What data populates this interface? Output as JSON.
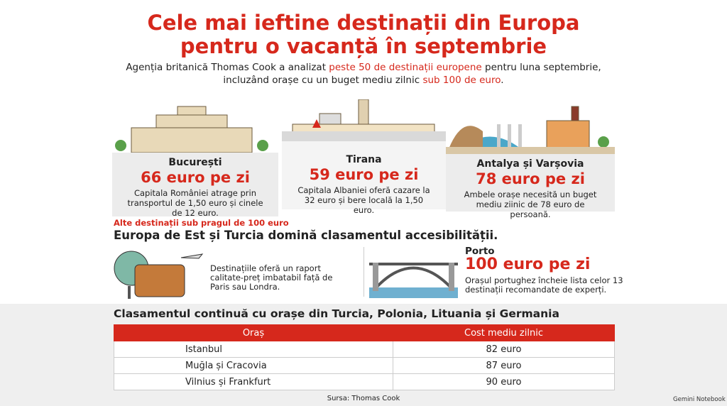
{
  "header": {
    "title_lines": [
      "Cele mai ieftine destinații din Europa",
      "pentru o vacanță în septembrie"
    ],
    "intro": [
      "Agenția britanică Thomas Cook a analizat ",
      "peste 50 de destinații europene",
      " pentru luna septembrie,",
      "incluzând orașe cu un buget mediu zilnic ",
      "sub 100 de euro",
      "."
    ]
  },
  "cards": [
    {
      "city": "București",
      "price": "66 euro pe zi",
      "text": "Capitala României atrage prin transportul de 1,50 euro și cinele de 12 euro."
    },
    {
      "city": "Tirana",
      "price": "59 euro pe zi",
      "text": "Capitala Albaniei oferă cazare la 32 euro și bere locală la 1,50 euro."
    },
    {
      "city": "Antalya și Varșovia",
      "price": "78 euro pe zi",
      "text": "Ambele orașe necesită un buget mediu ziinic de 78 euro de persoană."
    }
  ],
  "section": {
    "kicker": "Alte destinații sub pragul de 100 euro",
    "heading": "Europa de Est și Turcia domină clasamentul accesibilității.",
    "left_text": "Destinațiile oferă un raport calitate-preț imbatabil față de Paris sau Londra.",
    "porto": {
      "city": "Porto",
      "price": "100 euro pe zi",
      "text": "Orașul portughez încheie lista celor 13 destinații recomandate de experți."
    }
  },
  "table": {
    "heading": "Clasamentul continuă cu orașe din Turcia, Polonia, Lituania și Germania",
    "columns": [
      "Oraș",
      "Cost mediu zilnic"
    ],
    "rows": [
      [
        "Istanbul",
        "82 euro"
      ],
      [
        "Muğla și Cracovia",
        "87 euro"
      ],
      [
        "Vilnius și Frankfurt",
        "90 euro"
      ]
    ]
  },
  "source": "Sursa: Thomas Cook",
  "brand": "Gemini Notebook"
}
